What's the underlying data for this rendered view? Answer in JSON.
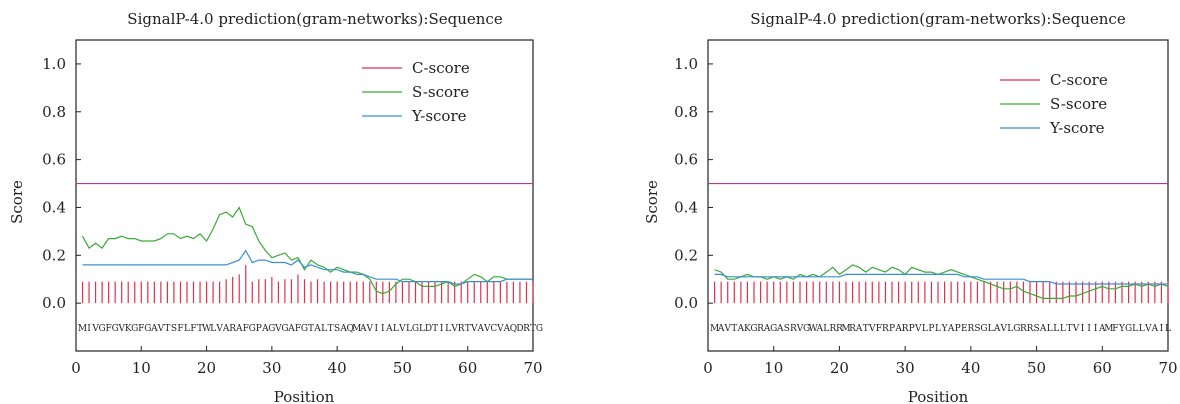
{
  "chart_data": [
    {
      "type": "line",
      "title": "SignalP-4.0 prediction(gram-networks):Sequence",
      "xlabel": "Position",
      "ylabel": "Score",
      "xlim": [
        0,
        70
      ],
      "ylim": [
        -0.2,
        1.1
      ],
      "xticks": [
        "0",
        "10",
        "20",
        "30",
        "40",
        "50",
        "60",
        "70"
      ],
      "yticks": [
        "0.0",
        "0.2",
        "0.4",
        "0.6",
        "0.8",
        "1.0"
      ],
      "legend_position": "top-right",
      "threshold": 0.5,
      "sequence": "MIVGFGVKGFGAVTSFLFTWLVARAFGPAGVGAFGTALTSAQMAVIIALVLGLDTILVRTVAVCVAQDRTG",
      "colors": {
        "c": "#e0304a",
        "s": "#3aaa35",
        "y": "#3a8fd6",
        "threshold": "#b03a9a"
      },
      "series": [
        {
          "name": "C-score",
          "style": "bars",
          "x": [
            1,
            2,
            3,
            4,
            5,
            6,
            7,
            8,
            9,
            10,
            11,
            12,
            13,
            14,
            15,
            16,
            17,
            18,
            19,
            20,
            21,
            22,
            23,
            24,
            25,
            26,
            27,
            28,
            29,
            30,
            31,
            32,
            33,
            34,
            35,
            36,
            37,
            38,
            39,
            40,
            41,
            42,
            43,
            44,
            45,
            46,
            47,
            48,
            49,
            50,
            51,
            52,
            53,
            54,
            55,
            56,
            57,
            58,
            59,
            60,
            61,
            62,
            63,
            64,
            65,
            66,
            67,
            68,
            69,
            70
          ],
          "values": [
            0.09,
            0.09,
            0.09,
            0.09,
            0.09,
            0.09,
            0.09,
            0.09,
            0.09,
            0.09,
            0.09,
            0.09,
            0.09,
            0.09,
            0.09,
            0.09,
            0.09,
            0.09,
            0.09,
            0.09,
            0.09,
            0.09,
            0.1,
            0.11,
            0.12,
            0.16,
            0.09,
            0.1,
            0.1,
            0.11,
            0.09,
            0.1,
            0.1,
            0.12,
            0.1,
            0.09,
            0.1,
            0.09,
            0.09,
            0.09,
            0.09,
            0.09,
            0.09,
            0.09,
            0.09,
            0.09,
            0.09,
            0.09,
            0.09,
            0.09,
            0.09,
            0.09,
            0.09,
            0.09,
            0.09,
            0.09,
            0.09,
            0.09,
            0.09,
            0.09,
            0.09,
            0.09,
            0.09,
            0.09,
            0.09,
            0.09,
            0.09,
            0.09,
            0.09,
            0.09
          ]
        },
        {
          "name": "S-score",
          "style": "line",
          "x": [
            1,
            2,
            3,
            4,
            5,
            6,
            7,
            8,
            9,
            10,
            11,
            12,
            13,
            14,
            15,
            16,
            17,
            18,
            19,
            20,
            21,
            22,
            23,
            24,
            25,
            26,
            27,
            28,
            29,
            30,
            31,
            32,
            33,
            34,
            35,
            36,
            37,
            38,
            39,
            40,
            41,
            42,
            43,
            44,
            45,
            46,
            47,
            48,
            49,
            50,
            51,
            52,
            53,
            54,
            55,
            56,
            57,
            58,
            59,
            60,
            61,
            62,
            63,
            64,
            65,
            66,
            67,
            68,
            69,
            70
          ],
          "values": [
            0.28,
            0.23,
            0.25,
            0.23,
            0.27,
            0.27,
            0.28,
            0.27,
            0.27,
            0.26,
            0.26,
            0.26,
            0.27,
            0.29,
            0.29,
            0.27,
            0.28,
            0.27,
            0.29,
            0.26,
            0.31,
            0.37,
            0.38,
            0.36,
            0.4,
            0.33,
            0.32,
            0.26,
            0.22,
            0.19,
            0.2,
            0.21,
            0.18,
            0.19,
            0.14,
            0.18,
            0.16,
            0.15,
            0.13,
            0.15,
            0.14,
            0.13,
            0.13,
            0.12,
            0.1,
            0.05,
            0.04,
            0.05,
            0.08,
            0.1,
            0.1,
            0.09,
            0.07,
            0.07,
            0.07,
            0.08,
            0.09,
            0.07,
            0.08,
            0.1,
            0.12,
            0.11,
            0.09,
            0.11,
            0.11,
            0.1,
            0.1,
            0.1,
            0.1,
            0.1
          ]
        },
        {
          "name": "Y-score",
          "style": "line",
          "x": [
            1,
            2,
            3,
            4,
            5,
            6,
            7,
            8,
            9,
            10,
            11,
            12,
            13,
            14,
            15,
            16,
            17,
            18,
            19,
            20,
            21,
            22,
            23,
            24,
            25,
            26,
            27,
            28,
            29,
            30,
            31,
            32,
            33,
            34,
            35,
            36,
            37,
            38,
            39,
            40,
            41,
            42,
            43,
            44,
            45,
            46,
            47,
            48,
            49,
            50,
            51,
            52,
            53,
            54,
            55,
            56,
            57,
            58,
            59,
            60,
            61,
            62,
            63,
            64,
            65,
            66,
            67,
            68,
            69,
            70
          ],
          "values": [
            0.16,
            0.16,
            0.16,
            0.16,
            0.16,
            0.16,
            0.16,
            0.16,
            0.16,
            0.16,
            0.16,
            0.16,
            0.16,
            0.16,
            0.16,
            0.16,
            0.16,
            0.16,
            0.16,
            0.16,
            0.16,
            0.16,
            0.16,
            0.17,
            0.18,
            0.22,
            0.17,
            0.18,
            0.18,
            0.17,
            0.17,
            0.17,
            0.16,
            0.18,
            0.15,
            0.16,
            0.15,
            0.14,
            0.14,
            0.14,
            0.13,
            0.13,
            0.12,
            0.12,
            0.11,
            0.1,
            0.1,
            0.1,
            0.1,
            0.09,
            0.09,
            0.09,
            0.09,
            0.09,
            0.09,
            0.09,
            0.09,
            0.08,
            0.08,
            0.09,
            0.09,
            0.09,
            0.09,
            0.09,
            0.09,
            0.1,
            0.1,
            0.1,
            0.1,
            0.1
          ]
        }
      ]
    },
    {
      "type": "line",
      "title": "SignalP-4.0 prediction(gram-networks):Sequence",
      "xlabel": "Position",
      "ylabel": "Score",
      "xlim": [
        0,
        70
      ],
      "ylim": [
        -0.2,
        1.1
      ],
      "xticks": [
        "0",
        "10",
        "20",
        "30",
        "40",
        "50",
        "60",
        "70"
      ],
      "yticks": [
        "0.0",
        "0.2",
        "0.4",
        "0.6",
        "0.8",
        "1.0"
      ],
      "legend_position": "top-right",
      "threshold": 0.5,
      "sequence": "MAVTAKGRAGASRVGWALRRMRATVFRPARPVLPLYAPERSGLAVLGRRSALLLTVIIIAMFYGLLVAIL",
      "colors": {
        "c": "#e0304a",
        "s": "#3aaa35",
        "y": "#3a8fd6",
        "threshold": "#b03a9a"
      },
      "series": [
        {
          "name": "C-score",
          "style": "bars",
          "x": [
            1,
            2,
            3,
            4,
            5,
            6,
            7,
            8,
            9,
            10,
            11,
            12,
            13,
            14,
            15,
            16,
            17,
            18,
            19,
            20,
            21,
            22,
            23,
            24,
            25,
            26,
            27,
            28,
            29,
            30,
            31,
            32,
            33,
            34,
            35,
            36,
            37,
            38,
            39,
            40,
            41,
            42,
            43,
            44,
            45,
            46,
            47,
            48,
            49,
            50,
            51,
            52,
            53,
            54,
            55,
            56,
            57,
            58,
            59,
            60,
            61,
            62,
            63,
            64,
            65,
            66,
            67,
            68,
            69,
            70
          ],
          "values": [
            0.09,
            0.09,
            0.09,
            0.09,
            0.09,
            0.09,
            0.09,
            0.09,
            0.09,
            0.09,
            0.09,
            0.09,
            0.09,
            0.09,
            0.09,
            0.09,
            0.09,
            0.09,
            0.09,
            0.09,
            0.09,
            0.09,
            0.09,
            0.09,
            0.09,
            0.09,
            0.09,
            0.09,
            0.09,
            0.09,
            0.09,
            0.09,
            0.09,
            0.09,
            0.09,
            0.09,
            0.09,
            0.09,
            0.09,
            0.09,
            0.09,
            0.09,
            0.09,
            0.09,
            0.09,
            0.09,
            0.09,
            0.09,
            0.09,
            0.09,
            0.09,
            0.09,
            0.09,
            0.09,
            0.09,
            0.09,
            0.09,
            0.09,
            0.09,
            0.09,
            0.09,
            0.09,
            0.09,
            0.09,
            0.09,
            0.09,
            0.09,
            0.09,
            0.09,
            0.09
          ]
        },
        {
          "name": "S-score",
          "style": "line",
          "x": [
            1,
            2,
            3,
            4,
            5,
            6,
            7,
            8,
            9,
            10,
            11,
            12,
            13,
            14,
            15,
            16,
            17,
            18,
            19,
            20,
            21,
            22,
            23,
            24,
            25,
            26,
            27,
            28,
            29,
            30,
            31,
            32,
            33,
            34,
            35,
            36,
            37,
            38,
            39,
            40,
            41,
            42,
            43,
            44,
            45,
            46,
            47,
            48,
            49,
            50,
            51,
            52,
            53,
            54,
            55,
            56,
            57,
            58,
            59,
            60,
            61,
            62,
            63,
            64,
            65,
            66,
            67,
            68,
            69,
            70
          ],
          "values": [
            0.14,
            0.13,
            0.1,
            0.1,
            0.11,
            0.12,
            0.11,
            0.11,
            0.1,
            0.11,
            0.1,
            0.11,
            0.1,
            0.12,
            0.11,
            0.12,
            0.11,
            0.13,
            0.15,
            0.12,
            0.14,
            0.16,
            0.15,
            0.13,
            0.15,
            0.14,
            0.13,
            0.15,
            0.14,
            0.12,
            0.15,
            0.14,
            0.13,
            0.13,
            0.12,
            0.13,
            0.14,
            0.13,
            0.12,
            0.11,
            0.1,
            0.09,
            0.08,
            0.07,
            0.06,
            0.06,
            0.07,
            0.05,
            0.04,
            0.03,
            0.02,
            0.02,
            0.02,
            0.02,
            0.03,
            0.03,
            0.04,
            0.05,
            0.06,
            0.07,
            0.06,
            0.06,
            0.07,
            0.07,
            0.08,
            0.07,
            0.08,
            0.07,
            0.08,
            0.07
          ]
        },
        {
          "name": "Y-score",
          "style": "line",
          "x": [
            1,
            2,
            3,
            4,
            5,
            6,
            7,
            8,
            9,
            10,
            11,
            12,
            13,
            14,
            15,
            16,
            17,
            18,
            19,
            20,
            21,
            22,
            23,
            24,
            25,
            26,
            27,
            28,
            29,
            30,
            31,
            32,
            33,
            34,
            35,
            36,
            37,
            38,
            39,
            40,
            41,
            42,
            43,
            44,
            45,
            46,
            47,
            48,
            49,
            50,
            51,
            52,
            53,
            54,
            55,
            56,
            57,
            58,
            59,
            60,
            61,
            62,
            63,
            64,
            65,
            66,
            67,
            68,
            69,
            70
          ],
          "values": [
            0.12,
            0.12,
            0.11,
            0.11,
            0.11,
            0.11,
            0.11,
            0.11,
            0.11,
            0.11,
            0.11,
            0.11,
            0.11,
            0.11,
            0.11,
            0.11,
            0.11,
            0.11,
            0.11,
            0.11,
            0.12,
            0.12,
            0.12,
            0.12,
            0.12,
            0.12,
            0.12,
            0.12,
            0.12,
            0.12,
            0.12,
            0.12,
            0.12,
            0.12,
            0.12,
            0.12,
            0.12,
            0.12,
            0.11,
            0.11,
            0.11,
            0.1,
            0.1,
            0.1,
            0.1,
            0.1,
            0.1,
            0.1,
            0.09,
            0.09,
            0.09,
            0.09,
            0.08,
            0.08,
            0.08,
            0.08,
            0.08,
            0.08,
            0.08,
            0.08,
            0.08,
            0.08,
            0.08,
            0.08,
            0.08,
            0.08,
            0.08,
            0.08,
            0.08,
            0.08
          ]
        }
      ]
    }
  ]
}
